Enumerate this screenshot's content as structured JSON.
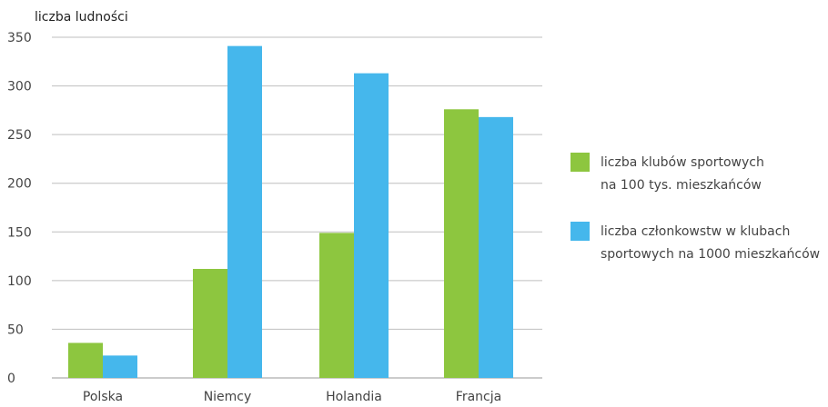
{
  "chart_data": {
    "type": "bar",
    "ylabel": "liczba ludności",
    "xlabel": "",
    "title": "",
    "ylim": [
      0,
      350
    ],
    "yticks": [
      0,
      50,
      100,
      150,
      200,
      250,
      300,
      350
    ],
    "grid": true,
    "legend_position": "right",
    "categories": [
      "Polska",
      "Niemcy",
      "Holandia",
      "Francja"
    ],
    "series": [
      {
        "name": "liczba klubów sportowych na 100 tys. mieszkańców",
        "legend_lines": [
          "liczba klubów sportowych",
          "na 100 tys. mieszkańców"
        ],
        "color": "#8dc63f",
        "values": [
          36,
          112,
          149,
          276
        ]
      },
      {
        "name": "liczba członkowstw w klubach sportowych na 1000 mieszkańców",
        "legend_lines": [
          "liczba członkowstw w klubach",
          "sportowych na 1000 mieszkańców"
        ],
        "color": "#45b7ec",
        "values": [
          23,
          341,
          313,
          268
        ]
      }
    ]
  }
}
